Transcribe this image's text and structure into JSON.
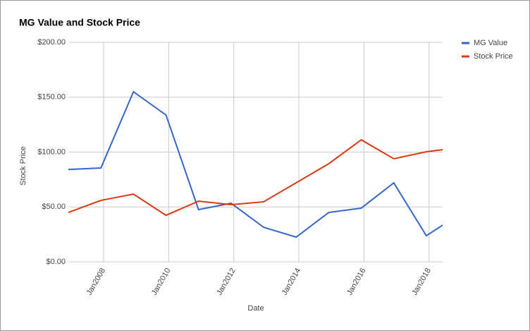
{
  "chart_data": {
    "type": "line",
    "title": "MG Value and Stock Price",
    "x_label": "Date",
    "y_label": "Stock Price",
    "x": [
      "2006-12",
      "2007-12",
      "2008-12",
      "2009-12",
      "2010-12",
      "2011-12",
      "2012-12",
      "2013-12",
      "2014-12",
      "2015-12",
      "2016-12",
      "2017-12",
      "2018-06"
    ],
    "series": [
      {
        "name": "MG Value",
        "color": "#3366cc",
        "values": [
          84.2,
          85.5,
          155,
          133.8,
          47.6,
          53.4,
          31.5,
          22.5,
          45,
          48.9,
          72,
          23.8,
          33.4
        ]
      },
      {
        "name": "Stock Price",
        "color": "#dc3912",
        "values": [
          45,
          56,
          61.7,
          42.4,
          55.3,
          52.1,
          54.7,
          72,
          89.4,
          111.2,
          93.9,
          100.3,
          102.2
        ]
      }
    ],
    "xlim": [
      "2006-12",
      "2018-06"
    ],
    "xticks": [
      {
        "value": "2008-01",
        "label": "Jan2008"
      },
      {
        "value": "2010-01",
        "label": "Jan2010"
      },
      {
        "value": "2012-01",
        "label": "Jan2012"
      },
      {
        "value": "2014-01",
        "label": "Jan2014"
      },
      {
        "value": "2016-01",
        "label": "Jan2016"
      },
      {
        "value": "2018-01",
        "label": "Jan2018"
      }
    ],
    "ylim": [
      0,
      200
    ],
    "yticks": [
      {
        "value": 0,
        "label": "$0.00"
      },
      {
        "value": 50,
        "label": "$50.00"
      },
      {
        "value": 100,
        "label": "$100.00"
      },
      {
        "value": 150,
        "label": "$150.00"
      },
      {
        "value": 200,
        "label": "$200.00"
      }
    ],
    "grid": true,
    "legend": "right"
  }
}
